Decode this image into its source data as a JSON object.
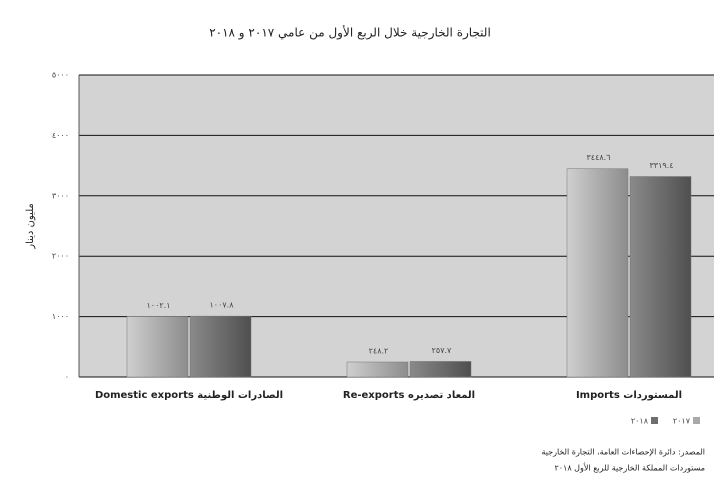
{
  "chart_data": {
    "type": "bar",
    "title": "التجارة الخارجية خلال الربع الأول من عامي ٢٠١٧ و ٢٠١٨",
    "y_label": "مليون دينار",
    "categories": [
      "Domestic exports الصادرات الوطنية",
      "Re-exports المعاد تصديره",
      "Imports المستوردات"
    ],
    "series": [
      {
        "name": "٢٠١٧",
        "color": "#a9a9a9",
        "values": [
          1002.1,
          248.2,
          3448.6
        ],
        "value_labels": [
          "١٠٠٢.١",
          "٢٤٨.٢",
          "٣٤٤٨.٦"
        ]
      },
      {
        "name": "٢٠١٨",
        "color": "#6e6e6e",
        "values": [
          1007.8,
          257.7,
          3319.4
        ],
        "value_labels": [
          "١٠٠٧.٨",
          "٢٥٧.٧",
          "٣٣١٩.٤"
        ]
      }
    ],
    "ylim": [
      0,
      5000
    ],
    "yticks": [
      {
        "value": 0,
        "label": "٠"
      },
      {
        "value": 1000,
        "label": "١٠٠٠"
      },
      {
        "value": 2000,
        "label": "٢٠٠٠"
      },
      {
        "value": 3000,
        "label": "٣٠٠٠"
      },
      {
        "value": 4000,
        "label": "٤٠٠٠"
      },
      {
        "value": 5000,
        "label": "٥٠٠٠"
      }
    ],
    "grid": true,
    "legend": "bottom-right",
    "notes": [
      "المصدر: دائرة الإحصاءات العامة، التجارة الخارجية",
      "مستوردات المملكة الخارجية للربع الأول ٢٠١٨"
    ]
  }
}
